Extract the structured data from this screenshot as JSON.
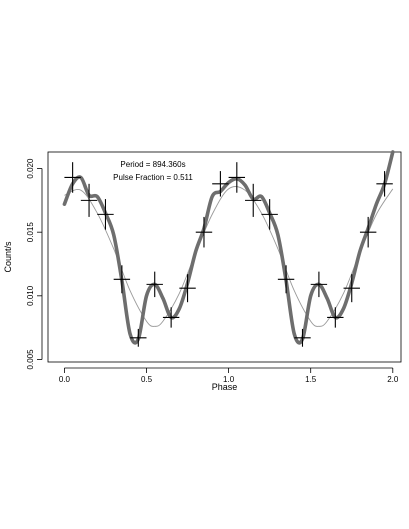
{
  "chart_data": {
    "type": "line",
    "xlabel": "Phase",
    "ylabel": "Count/s",
    "xlim": [
      -0.1,
      2.05
    ],
    "ylim": [
      0.0048,
      0.0213
    ],
    "x_ticks": [
      "0.0",
      "0.5",
      "1.0",
      "1.5",
      "2.0"
    ],
    "y_ticks": [
      "0.005",
      "0.010",
      "0.015",
      "0.020"
    ],
    "annotations": [
      "Period = 894.360s",
      "Pulse Fraction = 0.511"
    ],
    "data_points": {
      "phase": [
        0.05,
        0.15,
        0.25,
        0.35,
        0.45,
        0.55,
        0.65,
        0.75,
        0.85,
        0.95,
        1.05,
        1.15,
        1.25,
        1.35,
        1.45,
        1.55,
        1.65,
        1.75,
        1.85,
        1.95
      ],
      "rate": [
        0.0193,
        0.0175,
        0.0164,
        0.0113,
        0.0067,
        0.0109,
        0.0083,
        0.0106,
        0.015,
        0.0188,
        0.0193,
        0.0175,
        0.0164,
        0.0113,
        0.0067,
        0.0109,
        0.0083,
        0.0106,
        0.015,
        0.0188
      ],
      "rate_err": [
        0.0012,
        0.0013,
        0.0012,
        0.0011,
        0.0007,
        0.001,
        0.0008,
        0.0011,
        0.0012,
        0.001,
        0.0012,
        0.0013,
        0.0012,
        0.0011,
        0.0007,
        0.001,
        0.0008,
        0.0011,
        0.0012,
        0.001
      ],
      "phase_halfwidth": 0.05
    },
    "smooth_curve": {
      "x": [
        0.0,
        0.05,
        0.1,
        0.15,
        0.2,
        0.25,
        0.3,
        0.35,
        0.4,
        0.45,
        0.5,
        0.55,
        0.6,
        0.65,
        0.7,
        0.75,
        0.8,
        0.85,
        0.9,
        0.95,
        1.0,
        1.05,
        1.1,
        1.15,
        1.2,
        1.25,
        1.3,
        1.35,
        1.4,
        1.45,
        1.5,
        1.55,
        1.6,
        1.65,
        1.7,
        1.75,
        1.8,
        1.85,
        1.9,
        1.95,
        2.0
      ],
      "y": [
        0.0172,
        0.0188,
        0.0193,
        0.0179,
        0.0178,
        0.0165,
        0.0148,
        0.0112,
        0.007,
        0.0066,
        0.01,
        0.0109,
        0.0098,
        0.0083,
        0.009,
        0.011,
        0.0135,
        0.0153,
        0.0178,
        0.0182,
        0.0189,
        0.0192,
        0.0187,
        0.0176,
        0.0178,
        0.0165,
        0.0148,
        0.0112,
        0.007,
        0.0066,
        0.01,
        0.0109,
        0.0098,
        0.0083,
        0.009,
        0.011,
        0.0135,
        0.0153,
        0.0172,
        0.0188,
        0.0213
      ]
    },
    "model_curve": {
      "x": [
        0.0,
        0.1,
        0.2,
        0.3,
        0.4,
        0.5,
        0.55,
        0.6,
        0.7,
        0.8,
        0.9,
        1.0,
        1.1,
        1.2,
        1.3,
        1.4,
        1.5,
        1.55,
        1.6,
        1.7,
        1.8,
        1.9,
        2.0
      ],
      "y": [
        0.0179,
        0.0183,
        0.0165,
        0.0137,
        0.0104,
        0.008,
        0.0076,
        0.008,
        0.0102,
        0.0134,
        0.0164,
        0.0184,
        0.0183,
        0.0165,
        0.0137,
        0.0104,
        0.008,
        0.0076,
        0.008,
        0.0102,
        0.0134,
        0.0164,
        0.0184
      ]
    },
    "colors": {
      "smooth_curve": "#6e6e6e",
      "model_curve": "#9a9a9a",
      "data_points": "#000000",
      "axes": "#000000"
    },
    "grid": false,
    "legend": "none"
  }
}
